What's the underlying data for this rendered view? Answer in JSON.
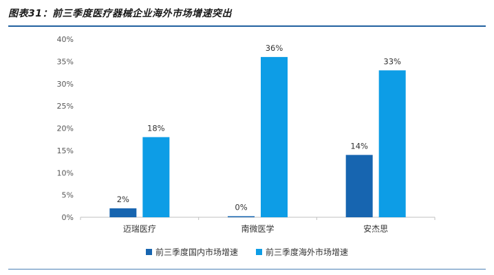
{
  "header": {
    "title": "图表31：前三季度医疗器械企业海外市场增速突出"
  },
  "colors": {
    "series_domestic": "#1765b0",
    "series_overseas": "#0d9de6",
    "rule": "#1f5f9f"
  },
  "chart_data": {
    "type": "bar",
    "categories": [
      "迈瑞医疗",
      "南微医学",
      "安杰思"
    ],
    "series": [
      {
        "name": "前三季度国内市场增速",
        "values": [
          2,
          0,
          14
        ],
        "labels": [
          "2%",
          "0%",
          "14%"
        ]
      },
      {
        "name": "前三季度海外市场增速",
        "values": [
          18,
          36,
          33
        ],
        "labels": [
          "18%",
          "36%",
          "33%"
        ]
      }
    ],
    "ylim": [
      0,
      40
    ],
    "yticks": [
      "0%",
      "5%",
      "10%",
      "15%",
      "20%",
      "25%",
      "30%",
      "35%",
      "40%"
    ],
    "xlabel": "",
    "ylabel": "",
    "grid": false,
    "legend": "bottom"
  }
}
